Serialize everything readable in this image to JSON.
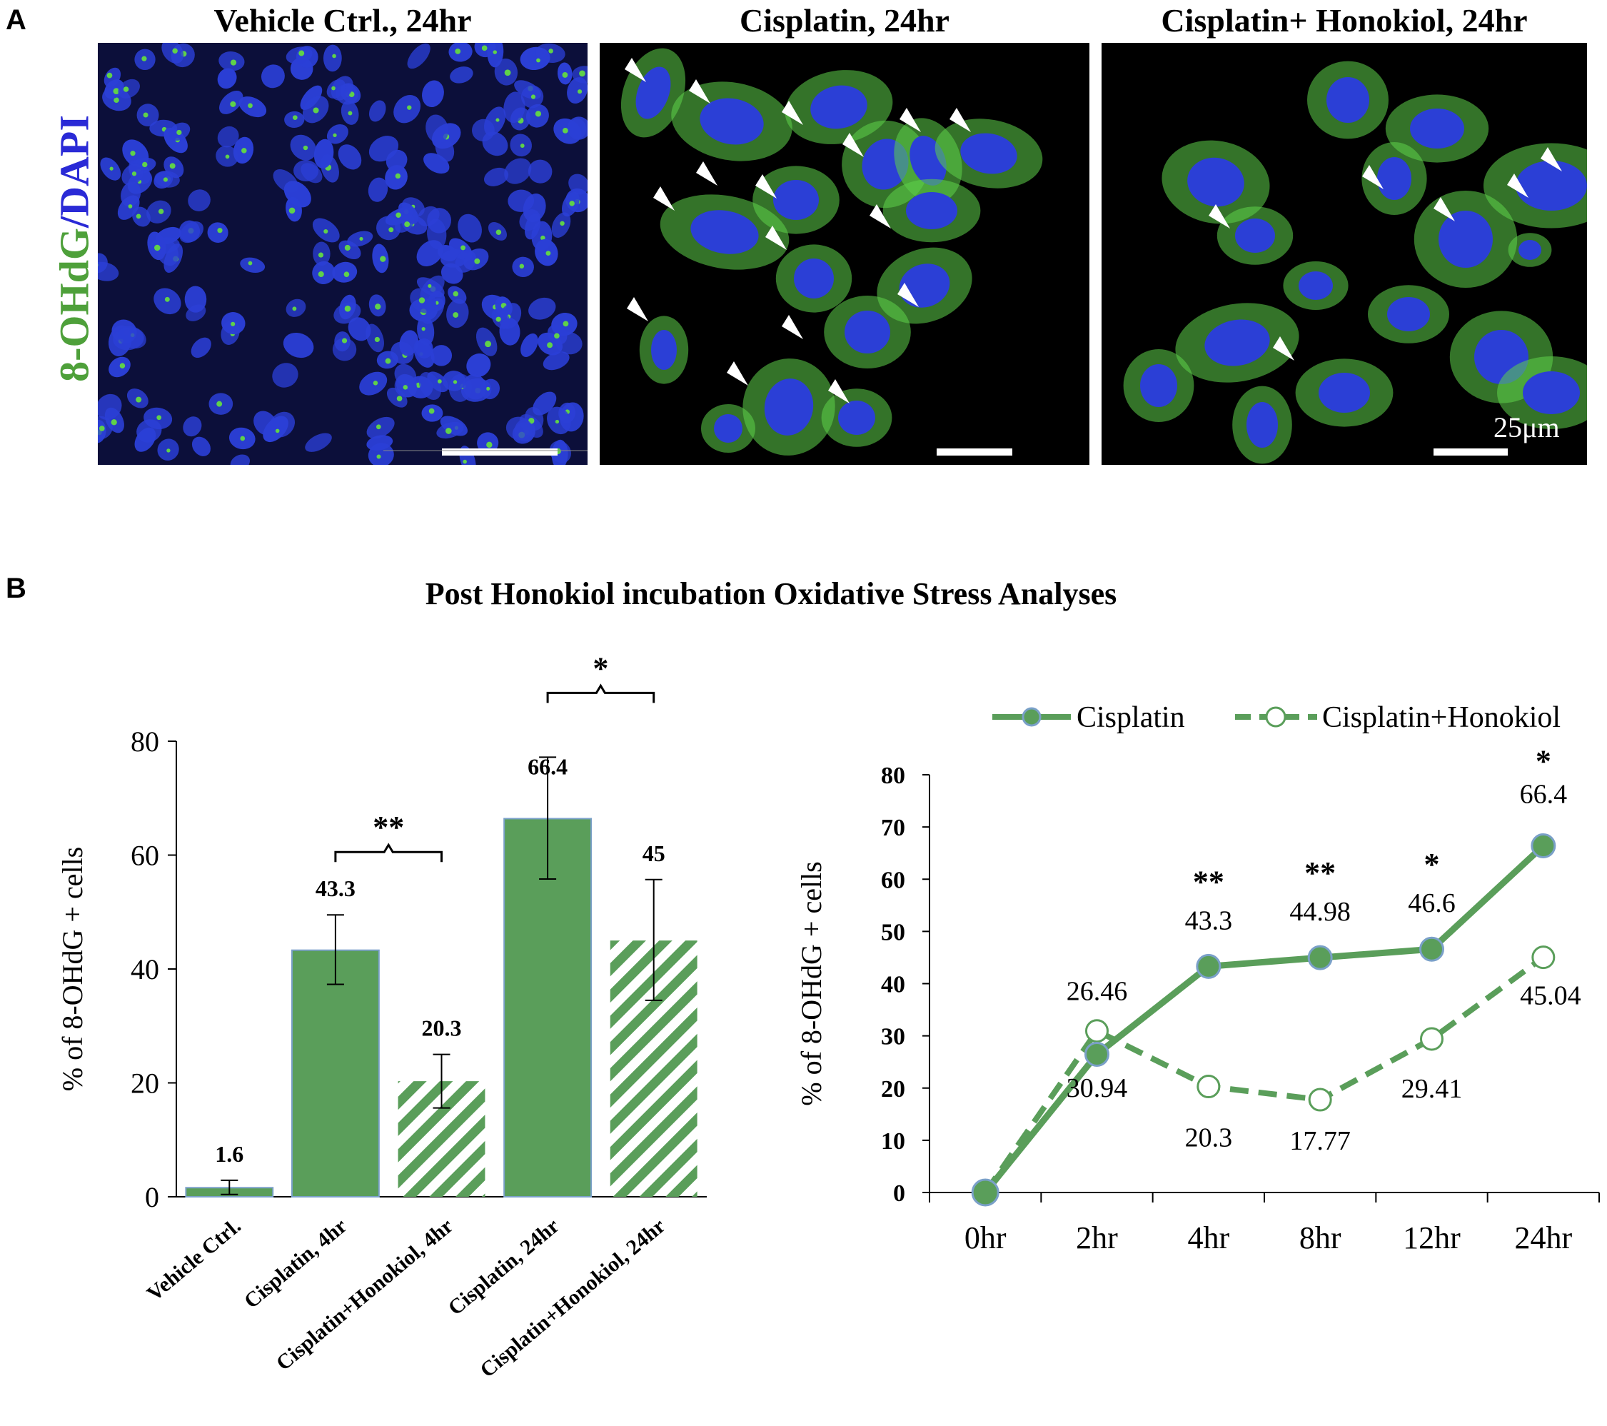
{
  "panel_a": {
    "letter": "A",
    "y_label_parts": [
      {
        "text": "8-OHdG",
        "color": "#4ea03a"
      },
      {
        "text": "/",
        "color": "#2a2ad6"
      },
      {
        "text": "DAPI",
        "color": "#2a2ad6"
      }
    ],
    "images": [
      {
        "title": "Vehicle Ctrl., 24hr",
        "scale_bar_text": "",
        "arrowheads": 0
      },
      {
        "title": "Cisplatin, 24hr",
        "scale_bar_text": "",
        "arrowheads": 16
      },
      {
        "title": "Cisplatin+ Honokiol, 24hr",
        "scale_bar_text": "25μm",
        "arrowheads": 7
      }
    ],
    "colors": {
      "nucleus": "#2b3fd6",
      "stain": "#5fd14a",
      "background": "#000000"
    }
  },
  "panel_b": {
    "letter": "B",
    "title": "Post Honokiol incubation Oxidative Stress Analyses"
  },
  "chart_data": [
    {
      "type": "bar",
      "ylabel": "% of 8-OHdG + cells",
      "ylim": [
        0,
        80
      ],
      "yticks": [
        0,
        20,
        40,
        60,
        80
      ],
      "categories": [
        "Vehicle Ctrl.",
        "Cisplatin, 4hr",
        "Cisplatin+Honokiol, 4hr",
        "Cisplatin, 24hr",
        "Cisplatin+Honokiol, 24hr"
      ],
      "values": [
        1.6,
        43.3,
        20.3,
        66.4,
        45
      ],
      "value_labels": [
        "1.6",
        "43.3",
        "20.3",
        "66.4",
        "45"
      ],
      "error_low": [
        0.4,
        37.3,
        15.6,
        55.8,
        34.5
      ],
      "error_high": [
        2.9,
        49.5,
        25.0,
        77.2,
        55.7
      ],
      "fills": [
        "solid",
        "solid",
        "hatched",
        "solid",
        "hatched"
      ],
      "significance": [
        {
          "from": 1,
          "to": 2,
          "label": "**"
        },
        {
          "from": 3,
          "to": 4,
          "label": "*"
        }
      ],
      "color": "#5a9e5a"
    },
    {
      "type": "line",
      "ylabel": "% of 8-OHdG + cells",
      "ylim": [
        0,
        80
      ],
      "yticks": [
        0,
        10,
        20,
        30,
        40,
        50,
        60,
        70,
        80
      ],
      "categories": [
        "0hr",
        "2hr",
        "4hr",
        "8hr",
        "12hr",
        "24hr"
      ],
      "legend_position": "top",
      "series": [
        {
          "name": "Cisplatin",
          "values": [
            0,
            26.46,
            43.3,
            44.98,
            46.6,
            66.4
          ],
          "labels": [
            "",
            "26.46",
            "43.3",
            "44.98",
            "46.6",
            "66.4"
          ],
          "style": "solid"
        },
        {
          "name": "Cisplatin+Honokiol",
          "values": [
            0,
            30.94,
            20.3,
            17.77,
            29.41,
            45.04
          ],
          "labels": [
            "",
            "30.94",
            "20.3",
            "17.77",
            "29.41",
            "45.04"
          ],
          "style": "dashed"
        }
      ],
      "significance": [
        "",
        "",
        "**",
        "**",
        "*",
        "*"
      ],
      "color": "#5a9e5a"
    }
  ]
}
